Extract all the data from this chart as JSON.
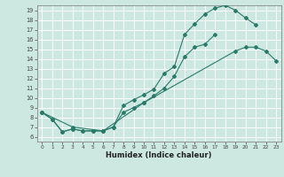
{
  "xlabel": "Humidex (Indice chaleur)",
  "bg_color": "#cce8e0",
  "grid_color": "#ffffff",
  "line_color": "#2a7a6a",
  "xlim": [
    -0.5,
    23.5
  ],
  "ylim": [
    5.5,
    19.5
  ],
  "line1_x": [
    0,
    1,
    2,
    3,
    4,
    5,
    6,
    7,
    8,
    9,
    10,
    11,
    12,
    13,
    14,
    15,
    16,
    17,
    18,
    19,
    20,
    21
  ],
  "line1_y": [
    8.5,
    7.8,
    6.5,
    6.8,
    6.6,
    6.6,
    6.6,
    7.0,
    9.2,
    9.8,
    10.3,
    10.9,
    12.5,
    13.2,
    16.5,
    17.6,
    18.6,
    19.2,
    19.5,
    19.0,
    18.2,
    17.5
  ],
  "line2_x": [
    0,
    1,
    2,
    3,
    4,
    5,
    6,
    7,
    8,
    9,
    10,
    11,
    12,
    13,
    14,
    15,
    16,
    17
  ],
  "line2_y": [
    8.5,
    7.8,
    6.5,
    6.8,
    6.6,
    6.6,
    6.6,
    7.0,
    8.5,
    9.0,
    9.5,
    10.2,
    11.0,
    12.2,
    14.2,
    15.2,
    15.5,
    16.5
  ],
  "line3_x": [
    0,
    3,
    6,
    10,
    19,
    20,
    21,
    22,
    23
  ],
  "line3_y": [
    8.5,
    7.0,
    6.6,
    9.5,
    14.8,
    15.2,
    15.2,
    14.8,
    13.8
  ]
}
